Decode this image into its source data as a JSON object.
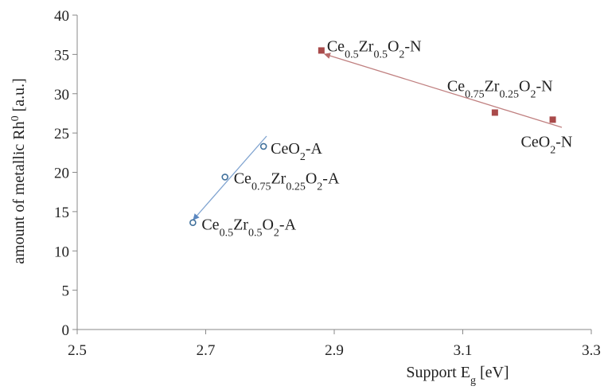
{
  "chart_data": {
    "type": "scatter",
    "xlabel": [
      "Support E",
      {
        "sub": "g"
      },
      " [eV]"
    ],
    "ylabel": [
      "amount of metallic Rh",
      {
        "sup": "0"
      },
      " [a.u.]"
    ],
    "xlim": [
      2.5,
      3.3
    ],
    "xticks": [
      2.5,
      2.7,
      2.9,
      3.1,
      3.3
    ],
    "ylim": [
      0,
      40
    ],
    "yticks": [
      0,
      5,
      10,
      15,
      20,
      25,
      30,
      35,
      40
    ],
    "series": [
      {
        "marker": "circle",
        "color": "#41719c",
        "x": [
          2.79,
          2.73,
          2.68
        ],
        "values": [
          23.3,
          19.4,
          13.6
        ],
        "labels": [
          [
            "CeO",
            {
              "sub": "2"
            },
            "-A"
          ],
          [
            "Ce",
            {
              "sub": "0.75"
            },
            "Zr",
            {
              "sub": "0.25"
            },
            "O",
            {
              "sub": "2"
            },
            "-A"
          ],
          [
            "Ce",
            {
              "sub": "0.5"
            },
            "Zr",
            {
              "sub": "0.5"
            },
            "O",
            {
              "sub": "2"
            },
            "-A"
          ]
        ]
      },
      {
        "marker": "square",
        "color": "#a94a4a",
        "x": [
          2.88,
          3.15,
          3.24
        ],
        "values": [
          35.5,
          27.6,
          26.7
        ],
        "labels": [
          [
            "Ce",
            {
              "sub": "0.5"
            },
            "Zr",
            {
              "sub": "0.5"
            },
            "O",
            {
              "sub": "2"
            },
            "-N"
          ],
          [
            "Ce",
            {
              "sub": "0.75"
            },
            "Zr",
            {
              "sub": "0.25"
            },
            "O",
            {
              "sub": "2"
            },
            "-N"
          ],
          [
            "CeO",
            {
              "sub": "2"
            },
            "-N"
          ]
        ]
      }
    ]
  }
}
